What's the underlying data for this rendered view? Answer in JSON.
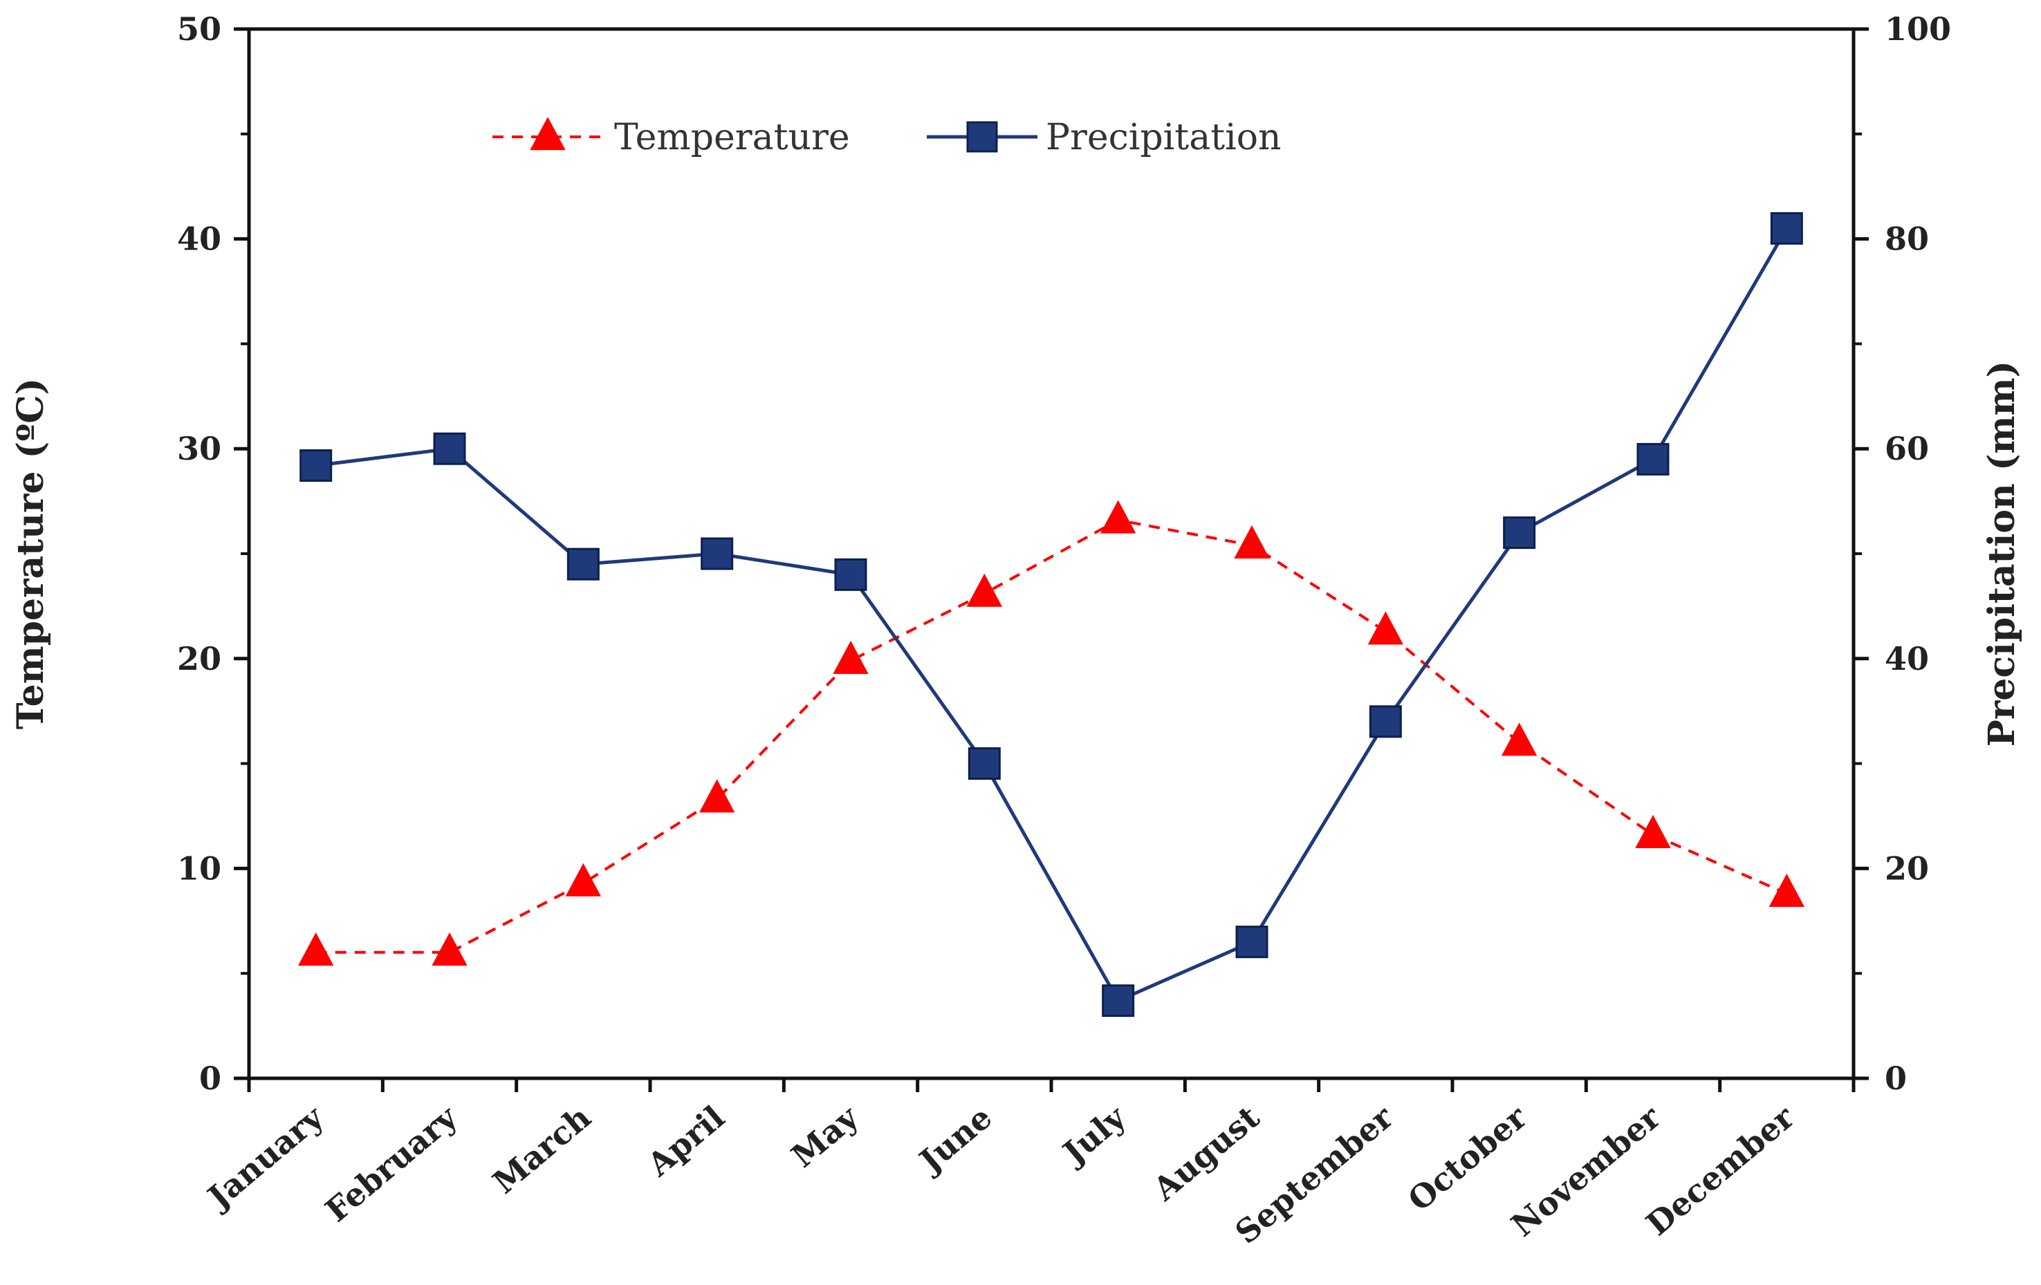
{
  "chart_data": {
    "type": "line",
    "title": "",
    "categories": [
      "January",
      "February",
      "March",
      "April",
      "May",
      "June",
      "July",
      "August",
      "September",
      "October",
      "November",
      "December"
    ],
    "xlabel": "",
    "y_left": {
      "label": "Temperature (ºC)",
      "range": [
        0,
        50
      ],
      "ticks": [
        0,
        10,
        20,
        30,
        40,
        50
      ]
    },
    "y_right": {
      "label": "Precipitation (mm)",
      "range": [
        0,
        100
      ],
      "ticks": [
        0,
        20,
        40,
        60,
        80,
        100
      ]
    },
    "series": [
      {
        "name": "Temperature",
        "axis": "left",
        "values": [
          6.0,
          6.0,
          9.3,
          13.3,
          19.9,
          23.1,
          26.6,
          25.4,
          21.3,
          16.0,
          11.6,
          8.8
        ],
        "color": "#ff0000",
        "line_style": "dashed",
        "marker": "triangle"
      },
      {
        "name": "Precipitation",
        "axis": "right",
        "values": [
          58.4,
          60.0,
          49.0,
          50.0,
          48.0,
          30.0,
          7.4,
          13.0,
          34.0,
          52.0,
          59.0,
          81.0
        ],
        "color": "#1f3a7a",
        "line_style": "solid",
        "marker": "square"
      }
    ],
    "legend_position": "top-center",
    "grid": false
  }
}
